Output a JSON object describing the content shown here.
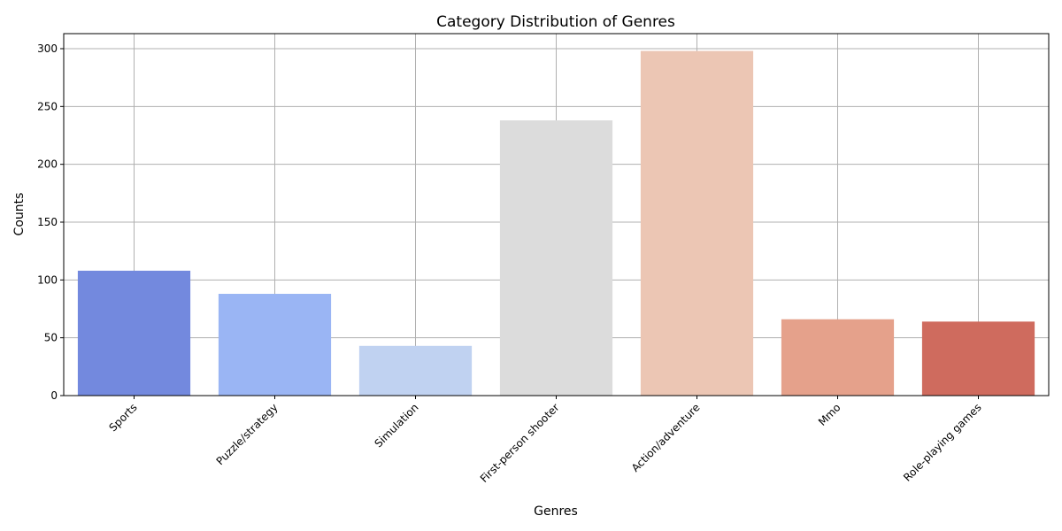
{
  "chart_data": {
    "type": "bar",
    "title": "Category Distribution of Genres",
    "xlabel": "Genres",
    "ylabel": "Counts",
    "categories": [
      "Sports",
      "Puzzle/strategy",
      "Simulation",
      "First-person shooter",
      "Action/adventure",
      "Mmo",
      "Role-playing games"
    ],
    "values": [
      108,
      88,
      43,
      238,
      298,
      66,
      64
    ],
    "colors": [
      "#7389de",
      "#9ab5f4",
      "#c0d2f1",
      "#dcdcdc",
      "#ecc6b4",
      "#e5a18b",
      "#cf6b5e"
    ],
    "ylim": [
      0,
      313
    ],
    "yticks": [
      0,
      50,
      100,
      150,
      200,
      250,
      300
    ],
    "grid": true,
    "legend": "none"
  }
}
